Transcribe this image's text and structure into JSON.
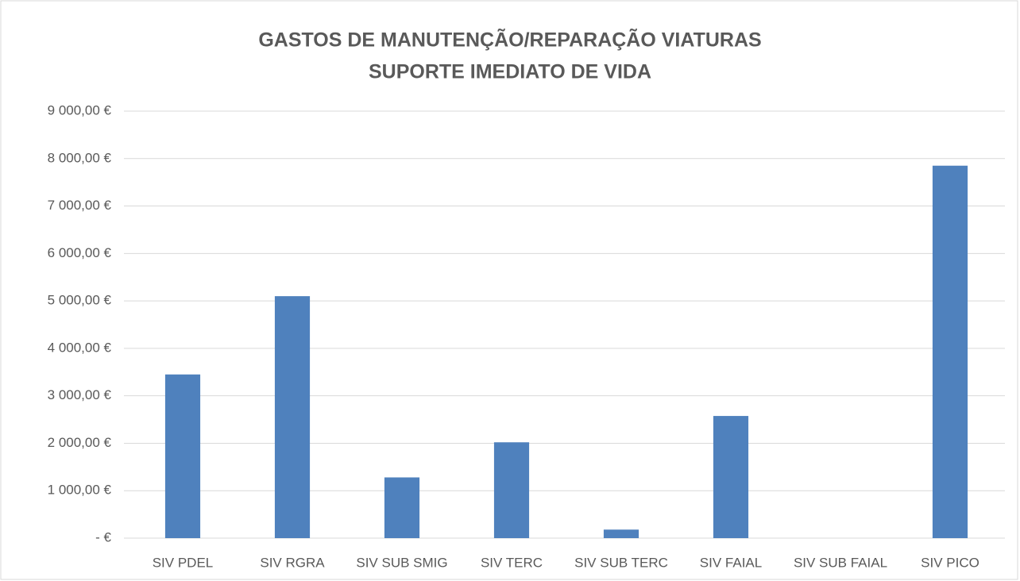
{
  "chart_data": {
    "type": "bar",
    "title": [
      "GASTOS DE MANUTENÇÃO/REPARAÇÃO VIATURAS",
      "SUPORTE IMEDIATO DE VIDA"
    ],
    "categories": [
      "SIV PDEL",
      "SIV RGRA",
      "SIV SUB SMIG",
      "SIV TERC",
      "SIV SUB TERC",
      "SIV FAIAL",
      "SIV SUB FAIAL",
      "SIV PICO"
    ],
    "values": [
      3450,
      5100,
      1280,
      2020,
      180,
      2575,
      0,
      7850
    ],
    "color": "#4f81bd",
    "ylim": [
      0,
      9000
    ],
    "yticks": [
      {
        "value": 0,
        "label": "-  €"
      },
      {
        "value": 1000,
        "label": "1 000,00 €"
      },
      {
        "value": 2000,
        "label": "2 000,00 €"
      },
      {
        "value": 3000,
        "label": "3 000,00 €"
      },
      {
        "value": 4000,
        "label": "4 000,00 €"
      },
      {
        "value": 5000,
        "label": "5 000,00 €"
      },
      {
        "value": 6000,
        "label": "6 000,00 €"
      },
      {
        "value": 7000,
        "label": "7 000,00 €"
      },
      {
        "value": 8000,
        "label": "8 000,00 €"
      },
      {
        "value": 9000,
        "label": "9 000,00 €"
      }
    ],
    "grid": true
  }
}
